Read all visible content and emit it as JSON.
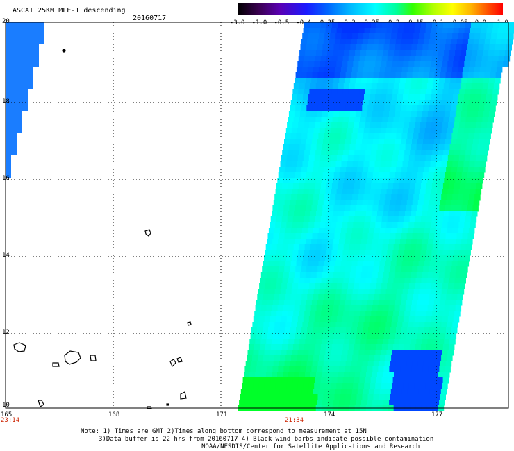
{
  "header": {
    "title": "ASCAT 25KM MLE-1 descending",
    "date": "20160717"
  },
  "colorbar": {
    "tick_labels": [
      "-3.0",
      "-1.0",
      "-0.5",
      "-0.4",
      "-0.35",
      "-0.3",
      "-0.25",
      "-0.2",
      "-0.15",
      "-0.1",
      "-0.05",
      "0.0",
      "1.0"
    ]
  },
  "map": {
    "lat_labels": [
      "20",
      "18",
      "16",
      "14",
      "12",
      "10"
    ],
    "lon_labels": [
      "165",
      "168",
      "171",
      "174",
      "177"
    ],
    "time_labels": [
      "23:14",
      "21:34"
    ]
  },
  "footer": {
    "note1": "Note: 1) Times are GMT 2)Times along bottom correspond to measurement at 15N",
    "note2": "3)Data buffer is 22 hrs from 20160717 4) Black wind barbs indicate possible contamination",
    "credit": "NOAA/NESDIS/Center for Satellite Applications and Research"
  },
  "colors": {
    "low": "#0033ff",
    "mid": "#00ffff",
    "high": "#00ff00"
  }
}
